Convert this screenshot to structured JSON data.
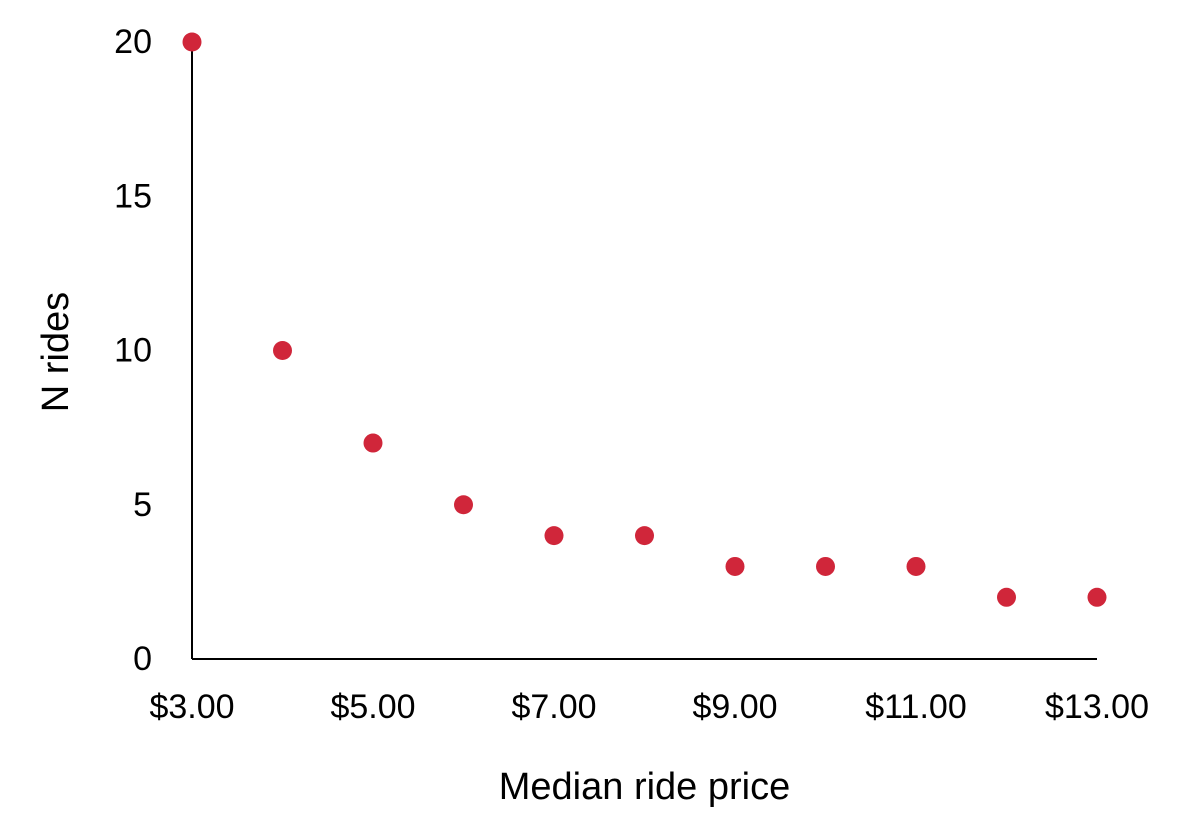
{
  "chart_data": {
    "type": "scatter",
    "title": "",
    "xlabel": "Median ride price",
    "ylabel": "N rides",
    "x_tick_labels": [
      "$3.00",
      "$5.00",
      "$7.00",
      "$9.00",
      "$11.00",
      "$13.00"
    ],
    "x_ticks": [
      3,
      5,
      7,
      9,
      11,
      13
    ],
    "y_ticks": [
      0,
      5,
      10,
      15,
      20
    ],
    "xlim": [
      3,
      13
    ],
    "ylim": [
      0,
      20
    ],
    "grid": false,
    "legend": "none",
    "series": [
      {
        "color": "#d0263a",
        "x": [
          3,
          4,
          5,
          6,
          7,
          8,
          9,
          10,
          11,
          12,
          13
        ],
        "y": [
          20,
          10,
          7,
          5,
          4,
          4,
          3,
          3,
          3,
          2,
          2
        ]
      }
    ]
  }
}
